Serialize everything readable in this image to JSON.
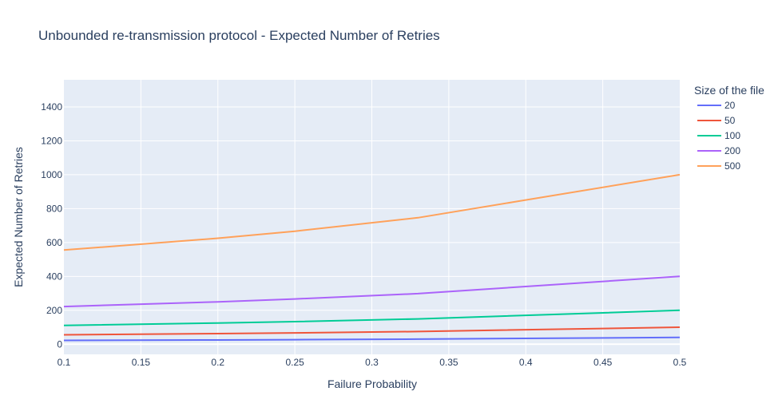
{
  "chart_data": {
    "type": "line",
    "title": "Unbounded re-transmission protocol - Expected Number of Retries",
    "xlabel": "Failure Probability",
    "ylabel": "Expected Number of Retries",
    "xlim": [
      0.1,
      0.5
    ],
    "ylim": [
      -60,
      1560
    ],
    "x_ticks": [
      0.1,
      0.15,
      0.2,
      0.25,
      0.3,
      0.35,
      0.4,
      0.45,
      0.5
    ],
    "x_tick_labels": [
      "0.1",
      "0.15",
      "0.2",
      "0.25",
      "0.3",
      "0.35",
      "0.4",
      "0.45",
      "0.5"
    ],
    "y_ticks": [
      0,
      200,
      400,
      600,
      800,
      1000,
      1200,
      1400
    ],
    "y_tick_labels": [
      "0",
      "200",
      "400",
      "600",
      "800",
      "1000",
      "1200",
      "1400"
    ],
    "grid": true,
    "legend": {
      "title": "Size of the file",
      "placement": "right"
    },
    "x": [
      0.1,
      0.2,
      0.25,
      0.33,
      0.5
    ],
    "series": [
      {
        "name": "20",
        "color": "#636efa",
        "values": [
          22.2,
          25,
          26.7,
          29.9,
          40
        ]
      },
      {
        "name": "50",
        "color": "#ef553b",
        "values": [
          55.6,
          62.5,
          66.7,
          74.6,
          100
        ]
      },
      {
        "name": "100",
        "color": "#00cc96",
        "values": [
          111.1,
          125,
          133.3,
          149.3,
          200
        ]
      },
      {
        "name": "200",
        "color": "#ab63fa",
        "values": [
          222.2,
          250,
          266.7,
          298.5,
          400
        ]
      },
      {
        "name": "500",
        "color": "#ffa15a",
        "values": [
          555.6,
          625,
          666.7,
          746.3,
          1000
        ]
      }
    ]
  }
}
